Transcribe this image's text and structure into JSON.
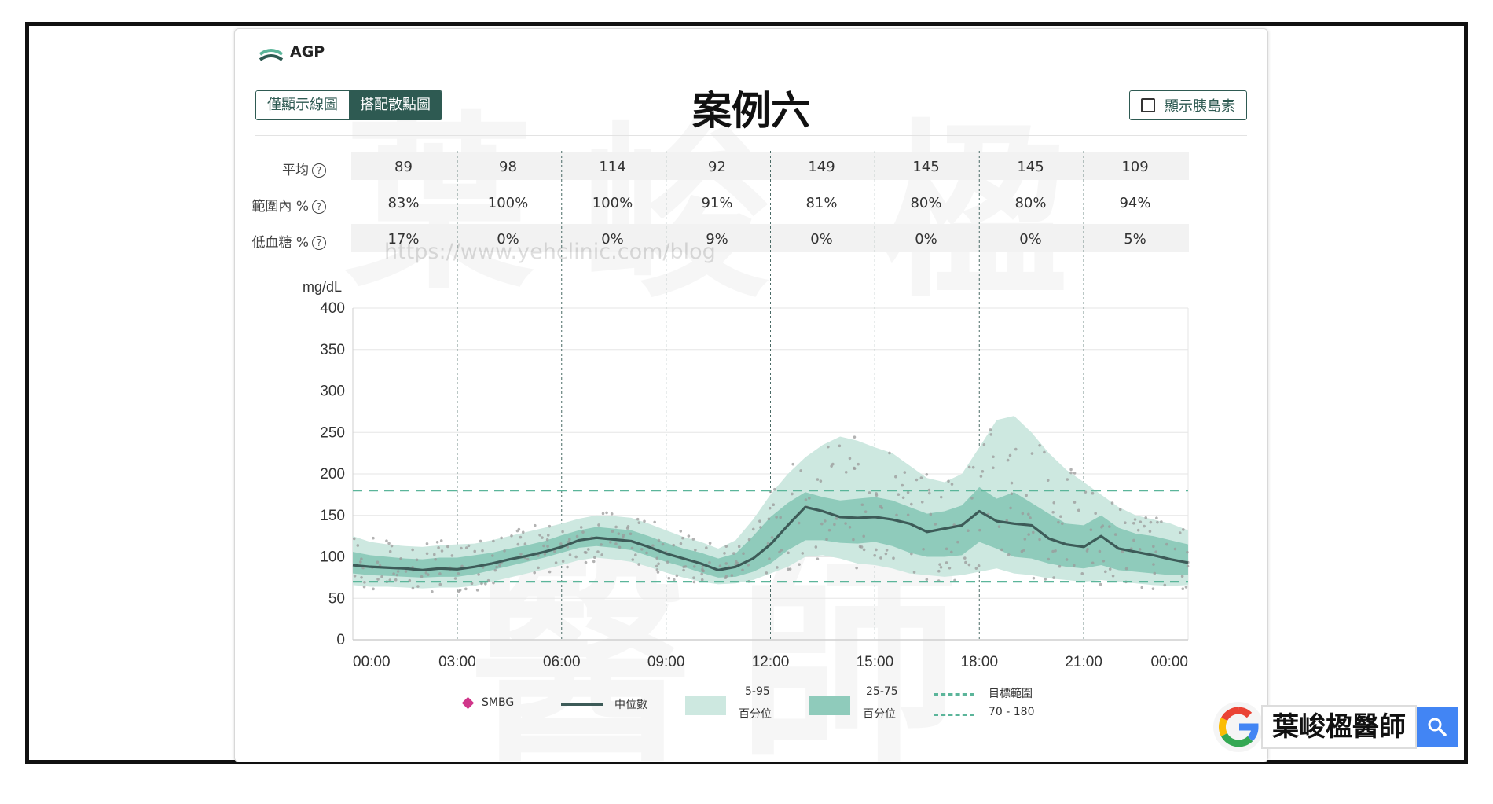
{
  "header": {
    "title": "AGP"
  },
  "tabs": [
    {
      "label": "僅顯示線圖",
      "active": false
    },
    {
      "label": "搭配散點圖",
      "active": true
    }
  ],
  "case_title": "案例六",
  "insulin_toggle": {
    "label": "顯示胰島素",
    "checked": false
  },
  "stats": {
    "rows": [
      {
        "label": "平均",
        "values": [
          "89",
          "98",
          "114",
          "92",
          "149",
          "145",
          "145",
          "109"
        ]
      },
      {
        "label": "範圍內 %",
        "values": [
          "83%",
          "100%",
          "100%",
          "91%",
          "81%",
          "80%",
          "80%",
          "94%"
        ]
      },
      {
        "label": "低血糖 %",
        "values": [
          "17%",
          "0%",
          "0%",
          "9%",
          "0%",
          "0%",
          "0%",
          "5%"
        ]
      }
    ],
    "help_icon": "question-circle-icon"
  },
  "watermark_text": "https://www.yehclinic.com/blog",
  "watermark_chars": "葉峻楹醫師",
  "legend": {
    "smbg": "SMBG",
    "median": "中位數",
    "p5_95_top": "5-95",
    "p5_95_bottom": "百分位",
    "p25_75_top": "25-75",
    "p25_75_bottom": "百分位",
    "target_top": "目標範圍",
    "target_bottom": "70 - 180"
  },
  "colors": {
    "median": "#3d5b58",
    "band_outer": "#cde8e0",
    "band_inner": "#8fcbbb",
    "target": "#5bb59a",
    "smbg": "#d0368a",
    "scatter": "#999999",
    "tab_active": "#2e5a52"
  },
  "badge": {
    "name": "葉峻楹醫師",
    "search_icon": "search-icon"
  },
  "chart_data": {
    "type": "line",
    "ylabel": "mg/dL",
    "ylim": [
      0,
      400
    ],
    "yticks": [
      0,
      50,
      100,
      150,
      200,
      250,
      300,
      350,
      400
    ],
    "xticks": [
      "00:00",
      "03:00",
      "06:00",
      "09:00",
      "12:00",
      "15:00",
      "18:00",
      "21:00",
      "00:00"
    ],
    "target_range": [
      70,
      180
    ],
    "x_hours": [
      0,
      0.5,
      1,
      1.5,
      2,
      2.5,
      3,
      3.5,
      4,
      4.5,
      5,
      5.5,
      6,
      6.5,
      7,
      7.5,
      8,
      8.5,
      9,
      9.5,
      10,
      10.5,
      11,
      11.5,
      12,
      12.5,
      13,
      13.5,
      14,
      14.5,
      15,
      15.5,
      16,
      16.5,
      17,
      17.5,
      18,
      18.5,
      19,
      19.5,
      20,
      20.5,
      21,
      21.5,
      22,
      22.5,
      23,
      23.5,
      24
    ],
    "series": [
      {
        "name": "中位數",
        "values": [
          90,
          88,
          87,
          86,
          84,
          86,
          85,
          88,
          92,
          97,
          101,
          106,
          112,
          120,
          123,
          121,
          119,
          112,
          104,
          98,
          92,
          84,
          88,
          98,
          115,
          138,
          160,
          155,
          148,
          147,
          148,
          145,
          140,
          130,
          134,
          138,
          155,
          143,
          140,
          138,
          122,
          115,
          112,
          125,
          110,
          106,
          102,
          97,
          93
        ]
      },
      {
        "name": "25",
        "values": [
          80,
          78,
          77,
          76,
          75,
          76,
          76,
          79,
          84,
          89,
          94,
          99,
          105,
          111,
          113,
          111,
          108,
          101,
          94,
          88,
          81,
          75,
          76,
          82,
          92,
          108,
          120,
          120,
          117,
          116,
          118,
          113,
          105,
          100,
          100,
          102,
          118,
          110,
          100,
          98,
          92,
          88,
          86,
          90,
          84,
          82,
          80,
          78,
          78
        ]
      },
      {
        "name": "75",
        "values": [
          106,
          102,
          100,
          98,
          97,
          99,
          99,
          102,
          105,
          110,
          114,
          119,
          126,
          132,
          136,
          134,
          132,
          125,
          117,
          110,
          105,
          98,
          104,
          125,
          148,
          165,
          178,
          172,
          168,
          170,
          172,
          168,
          160,
          152,
          155,
          162,
          184,
          170,
          178,
          165,
          152,
          140,
          138,
          150,
          135,
          128,
          125,
          120,
          115
        ]
      },
      {
        "name": "5",
        "values": [
          66,
          64,
          64,
          63,
          62,
          63,
          63,
          65,
          70,
          75,
          80,
          85,
          90,
          96,
          99,
          97,
          94,
          88,
          81,
          75,
          70,
          67,
          68,
          72,
          80,
          88,
          100,
          102,
          98,
          92,
          90,
          86,
          80,
          78,
          76,
          78,
          82,
          86,
          80,
          78,
          74,
          72,
          70,
          72,
          70,
          68,
          66,
          65,
          66
        ]
      },
      {
        "name": "95",
        "values": [
          125,
          118,
          115,
          113,
          112,
          114,
          115,
          116,
          120,
          125,
          130,
          135,
          140,
          146,
          150,
          149,
          147,
          140,
          132,
          124,
          118,
          110,
          120,
          145,
          175,
          200,
          220,
          235,
          245,
          240,
          232,
          225,
          210,
          195,
          190,
          200,
          232,
          265,
          270,
          250,
          225,
          205,
          190,
          175,
          160,
          150,
          145,
          140,
          132
        ]
      }
    ]
  }
}
